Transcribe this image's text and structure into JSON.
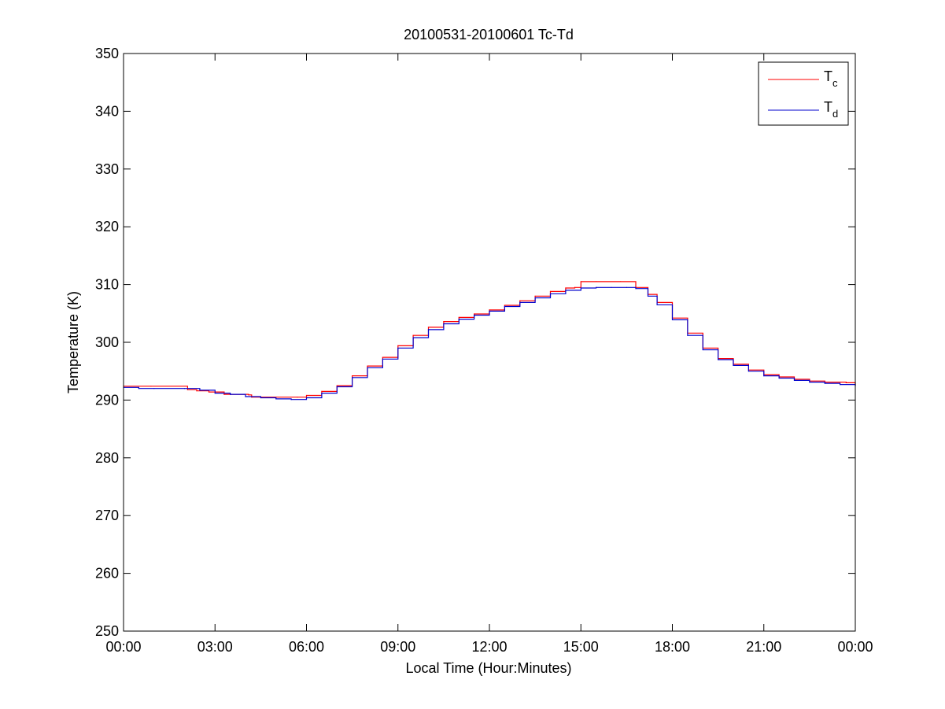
{
  "chart_data": {
    "type": "line",
    "title": "20100531-20100601 Tc-Td",
    "xlabel": "Local Time (Hour:Minutes)",
    "ylabel": "Temperature (K)",
    "x_unit": "hours",
    "xlim": [
      0,
      24
    ],
    "ylim": [
      250,
      350
    ],
    "x_ticks": [
      0,
      3,
      6,
      9,
      12,
      15,
      18,
      21,
      24
    ],
    "x_tick_labels": [
      "00:00",
      "03:00",
      "06:00",
      "09:00",
      "12:00",
      "15:00",
      "18:00",
      "21:00",
      "00:00"
    ],
    "y_ticks": [
      250,
      260,
      270,
      280,
      290,
      300,
      310,
      320,
      330,
      340,
      350
    ],
    "y_tick_labels": [
      "250",
      "260",
      "270",
      "280",
      "290",
      "300",
      "310",
      "320",
      "330",
      "340",
      "350"
    ],
    "grid": false,
    "legend_position": "top-right",
    "series": [
      {
        "name": "Tc",
        "legend_main": "T",
        "legend_sub": "c",
        "color": "#ff0000",
        "x": [
          0,
          0.9,
          2.1,
          2.4,
          2.8,
          3.3,
          4.1,
          4.2,
          5.7,
          6.0,
          6.5,
          7.0,
          7.5,
          8.0,
          8.5,
          9.0,
          9.5,
          10.0,
          10.5,
          11.0,
          11.5,
          12.0,
          12.5,
          13.0,
          13.5,
          14.0,
          14.5,
          14.8,
          15.0,
          15.5,
          16.3,
          16.8,
          17.2,
          17.5,
          18.0,
          18.5,
          19.0,
          19.5,
          20.0,
          20.5,
          21.0,
          21.5,
          22.0,
          22.5,
          23.0,
          23.7,
          24.0
        ],
        "y": [
          292.4,
          292.4,
          291.8,
          291.6,
          291.4,
          291.0,
          290.9,
          290.5,
          290.5,
          290.8,
          291.5,
          292.5,
          294.2,
          295.9,
          297.4,
          299.4,
          301.2,
          302.6,
          303.6,
          304.3,
          304.9,
          305.6,
          306.4,
          307.2,
          308.0,
          308.8,
          309.4,
          309.5,
          310.5,
          310.5,
          310.5,
          309.5,
          308.3,
          306.9,
          304.2,
          301.6,
          299.0,
          297.2,
          296.2,
          295.2,
          294.4,
          294.0,
          293.6,
          293.3,
          293.1,
          293.0,
          292.6
        ]
      },
      {
        "name": "Td",
        "legend_main": "T",
        "legend_sub": "d",
        "color": "#0000cc",
        "x": [
          0,
          0.5,
          1.0,
          2.0,
          2.5,
          3.0,
          3.5,
          4.0,
          4.5,
          5.0,
          5.5,
          6.0,
          6.5,
          7.0,
          7.5,
          8.0,
          8.5,
          9.0,
          9.5,
          10.0,
          10.5,
          11.0,
          11.5,
          12.0,
          12.5,
          13.0,
          13.5,
          14.0,
          14.5,
          15.0,
          15.5,
          16.0,
          16.5,
          16.8,
          17.2,
          17.5,
          18.0,
          18.5,
          19.0,
          19.5,
          20.0,
          20.5,
          21.0,
          21.5,
          22.0,
          22.5,
          23.0,
          23.5,
          24.0
        ],
        "y": [
          292.2,
          292.0,
          292.0,
          292.0,
          291.7,
          291.2,
          291.0,
          290.6,
          290.4,
          290.2,
          290.1,
          290.4,
          291.2,
          292.3,
          293.9,
          295.6,
          297.1,
          299.0,
          300.8,
          302.2,
          303.2,
          304.0,
          304.7,
          305.4,
          306.2,
          306.9,
          307.7,
          308.4,
          309.0,
          309.4,
          309.5,
          309.5,
          309.5,
          309.3,
          308.0,
          306.5,
          303.9,
          301.2,
          298.7,
          297.0,
          296.0,
          295.0,
          294.2,
          293.8,
          293.4,
          293.1,
          292.9,
          292.7,
          292.5
        ]
      }
    ]
  }
}
